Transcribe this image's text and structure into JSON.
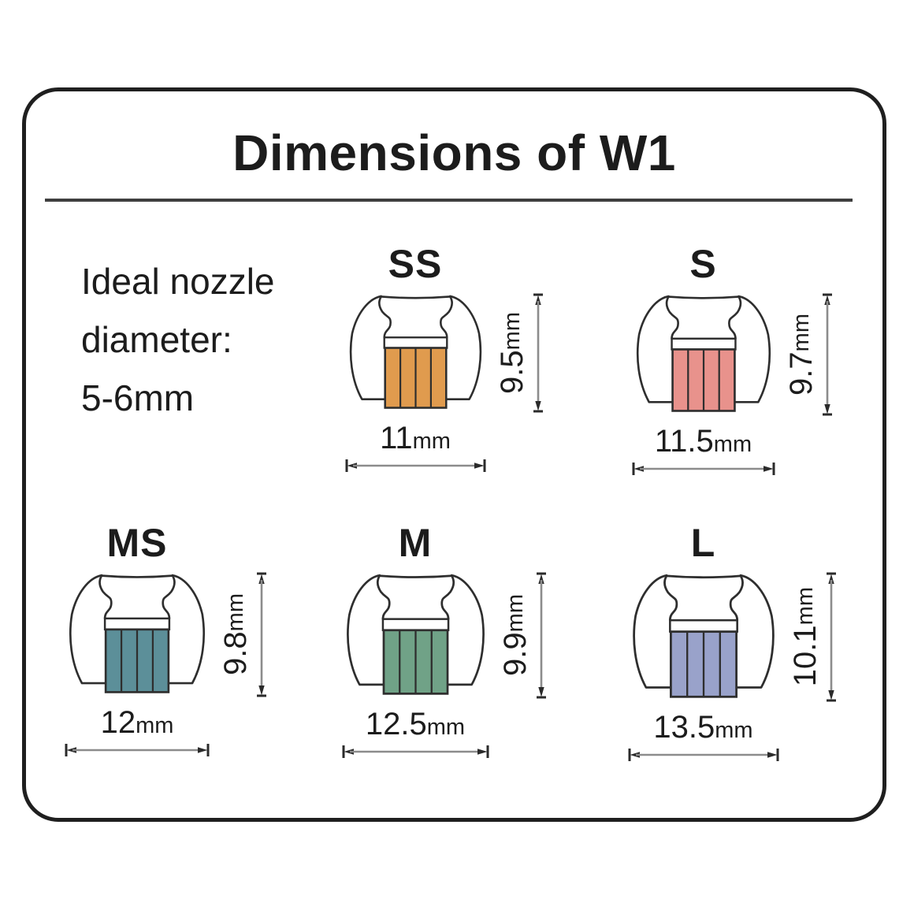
{
  "title": "Dimensions of W1",
  "note": {
    "lines": [
      "Ideal nozzle",
      "diameter:",
      "5-6mm"
    ]
  },
  "figures": [
    {
      "label": "SS",
      "height_value": "9.5",
      "height_unit": "mm",
      "width_value": "11",
      "width_unit": "mm",
      "width_mm": 11,
      "height_mm": 9.5,
      "core_color": "#E09B4E"
    },
    {
      "label": "S",
      "height_value": "9.7",
      "height_unit": "mm",
      "width_value": "11.5",
      "width_unit": "mm",
      "width_mm": 11.5,
      "height_mm": 9.7,
      "core_color": "#E8928C"
    },
    {
      "label": "MS",
      "height_value": "9.8",
      "height_unit": "mm",
      "width_value": "12",
      "width_unit": "mm",
      "width_mm": 12,
      "height_mm": 9.8,
      "core_color": "#5C8F99"
    },
    {
      "label": "M",
      "height_value": "9.9",
      "height_unit": "mm",
      "width_value": "12.5",
      "width_unit": "mm",
      "width_mm": 12.5,
      "height_mm": 9.9,
      "core_color": "#70A287"
    },
    {
      "label": "L",
      "height_value": "10.1",
      "height_unit": "mm",
      "width_value": "13.5",
      "width_unit": "mm",
      "width_mm": 13.5,
      "height_mm": 10.1,
      "core_color": "#99A2CA"
    }
  ],
  "colors": {
    "outline": "#2e2e2e",
    "dim_line": "#8c8c8c",
    "dim_marks": "#2b2b2b",
    "card_border": "#1f1f1f",
    "divider": "#3f3f3f",
    "text": "#1c1c1c",
    "background": "#ffffff"
  }
}
